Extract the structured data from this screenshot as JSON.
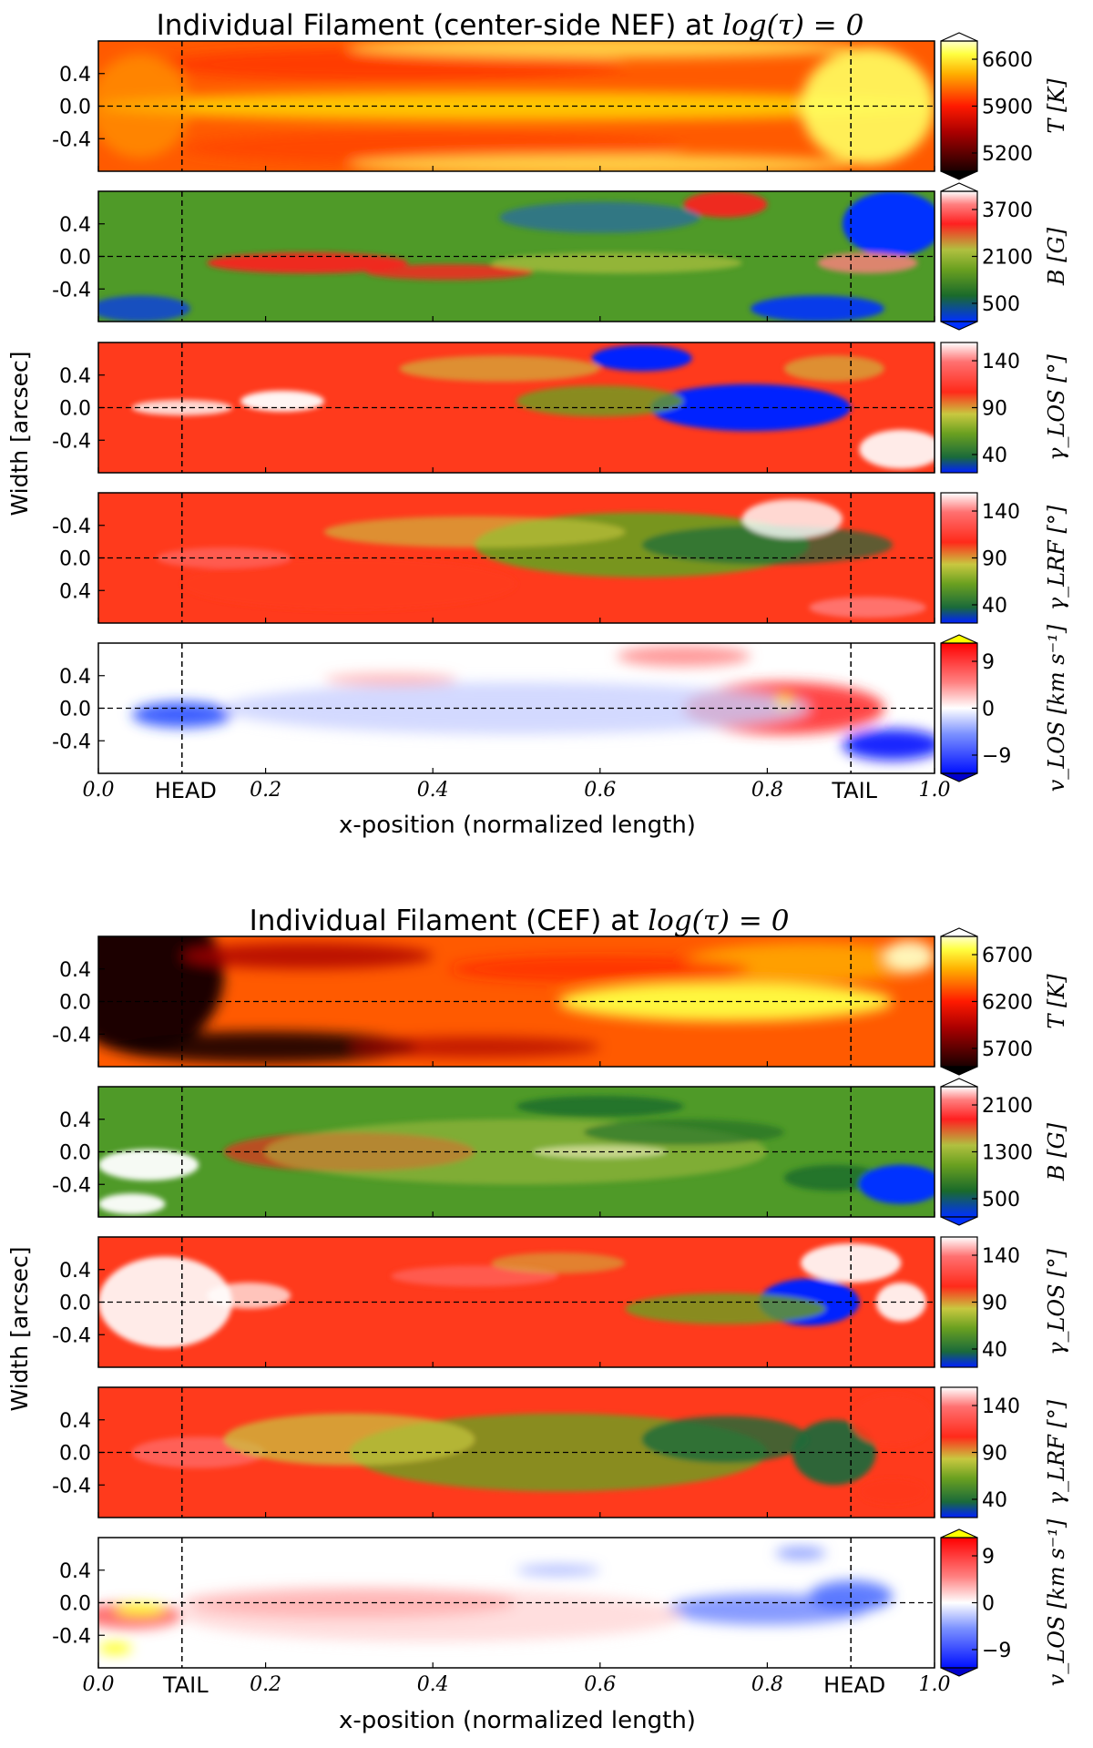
{
  "chart_data": [
    {
      "type": "heatmap",
      "title": "Individual Filament (center-side NEF) at log(τ)=0",
      "title_text": "Individual Filament (center-side NEF) at ",
      "title_math": "log(τ) = 0",
      "ylabel": "Width [arcsec]",
      "xlabel": "x-position (normalized length)",
      "xlim": [
        0.0,
        1.0
      ],
      "xticks": [
        "0.0",
        "0.2",
        "0.4",
        "0.6",
        "0.8",
        "1.0"
      ],
      "markers": [
        {
          "x": 0.1,
          "label": "HEAD"
        },
        {
          "x": 0.9,
          "label": "TAIL"
        }
      ],
      "panels": [
        {
          "quantity": "T [K]",
          "yticks": [
            "0.4",
            "0.0",
            "-0.4"
          ],
          "cbar_ticks": [
            "6600",
            "5900",
            "5200"
          ],
          "cmap": "hot",
          "extend_top": true,
          "extend_bottom": true,
          "extend_top_color": "#ffffff"
        },
        {
          "quantity": "B [G]",
          "yticks": [
            "0.4",
            "0.0",
            "-0.4"
          ],
          "cbar_ticks": [
            "3700",
            "2100",
            "500"
          ],
          "cmap": "field",
          "extend_top": true,
          "extend_bottom": true,
          "extend_top_color": "#ffffff"
        },
        {
          "quantity": "γ_LOS [°]",
          "yticks": [
            "0.4",
            "0.0",
            "-0.4"
          ],
          "cbar_ticks": [
            "140",
            "90",
            "40"
          ],
          "cmap": "incl"
        },
        {
          "quantity": "γ_LRF [°]",
          "yticks": [
            "-0.4",
            "0.0",
            "0.4"
          ],
          "cbar_ticks": [
            "140",
            "90",
            "40"
          ],
          "cmap": "incl"
        },
        {
          "quantity": "v_LOS [km s⁻¹]",
          "yticks": [
            "0.4",
            "0.0",
            "-0.4"
          ],
          "cbar_ticks": [
            "9",
            "0",
            "−9"
          ],
          "cmap": "vel",
          "extend_top": true,
          "extend_bottom": true,
          "extend_top_color": "#ffff00"
        }
      ]
    },
    {
      "type": "heatmap",
      "title": "Individual Filament (CEF) at log(τ)=0",
      "title_text": "Individual Filament (CEF) at ",
      "title_math": "log(τ) = 0",
      "ylabel": "Width [arcsec]",
      "xlabel": "x-position (normalized length)",
      "xlim": [
        0.0,
        1.0
      ],
      "xticks": [
        "0.0",
        "0.2",
        "0.4",
        "0.6",
        "0.8",
        "1.0"
      ],
      "markers": [
        {
          "x": 0.1,
          "label": "TAIL"
        },
        {
          "x": 0.9,
          "label": "HEAD"
        }
      ],
      "panels": [
        {
          "quantity": "T [K]",
          "yticks": [
            "0.4",
            "0.0",
            "-0.4"
          ],
          "cbar_ticks": [
            "6700",
            "6200",
            "5700"
          ],
          "cmap": "hot",
          "extend_top": true,
          "extend_bottom": true,
          "extend_top_color": "#ffffff"
        },
        {
          "quantity": "B [G]",
          "yticks": [
            "0.4",
            "0.0",
            "-0.4"
          ],
          "cbar_ticks": [
            "2100",
            "1300",
            "500"
          ],
          "cmap": "field",
          "extend_top": true,
          "extend_bottom": true,
          "extend_top_color": "#ffffff"
        },
        {
          "quantity": "γ_LOS [°]",
          "yticks": [
            "0.4",
            "0.0",
            "-0.4"
          ],
          "cbar_ticks": [
            "140",
            "90",
            "40"
          ],
          "cmap": "incl"
        },
        {
          "quantity": "γ_LRF [°]",
          "yticks": [
            "0.4",
            "0.0",
            "-0.4"
          ],
          "cbar_ticks": [
            "140",
            "90",
            "40"
          ],
          "cmap": "incl"
        },
        {
          "quantity": "v_LOS [km s⁻¹]",
          "yticks": [
            "0.4",
            "0.0",
            "-0.4"
          ],
          "cbar_ticks": [
            "9",
            "0",
            "−9"
          ],
          "cmap": "vel",
          "extend_top": true,
          "extend_bottom": true,
          "extend_top_color": "#ffff00"
        }
      ]
    }
  ]
}
